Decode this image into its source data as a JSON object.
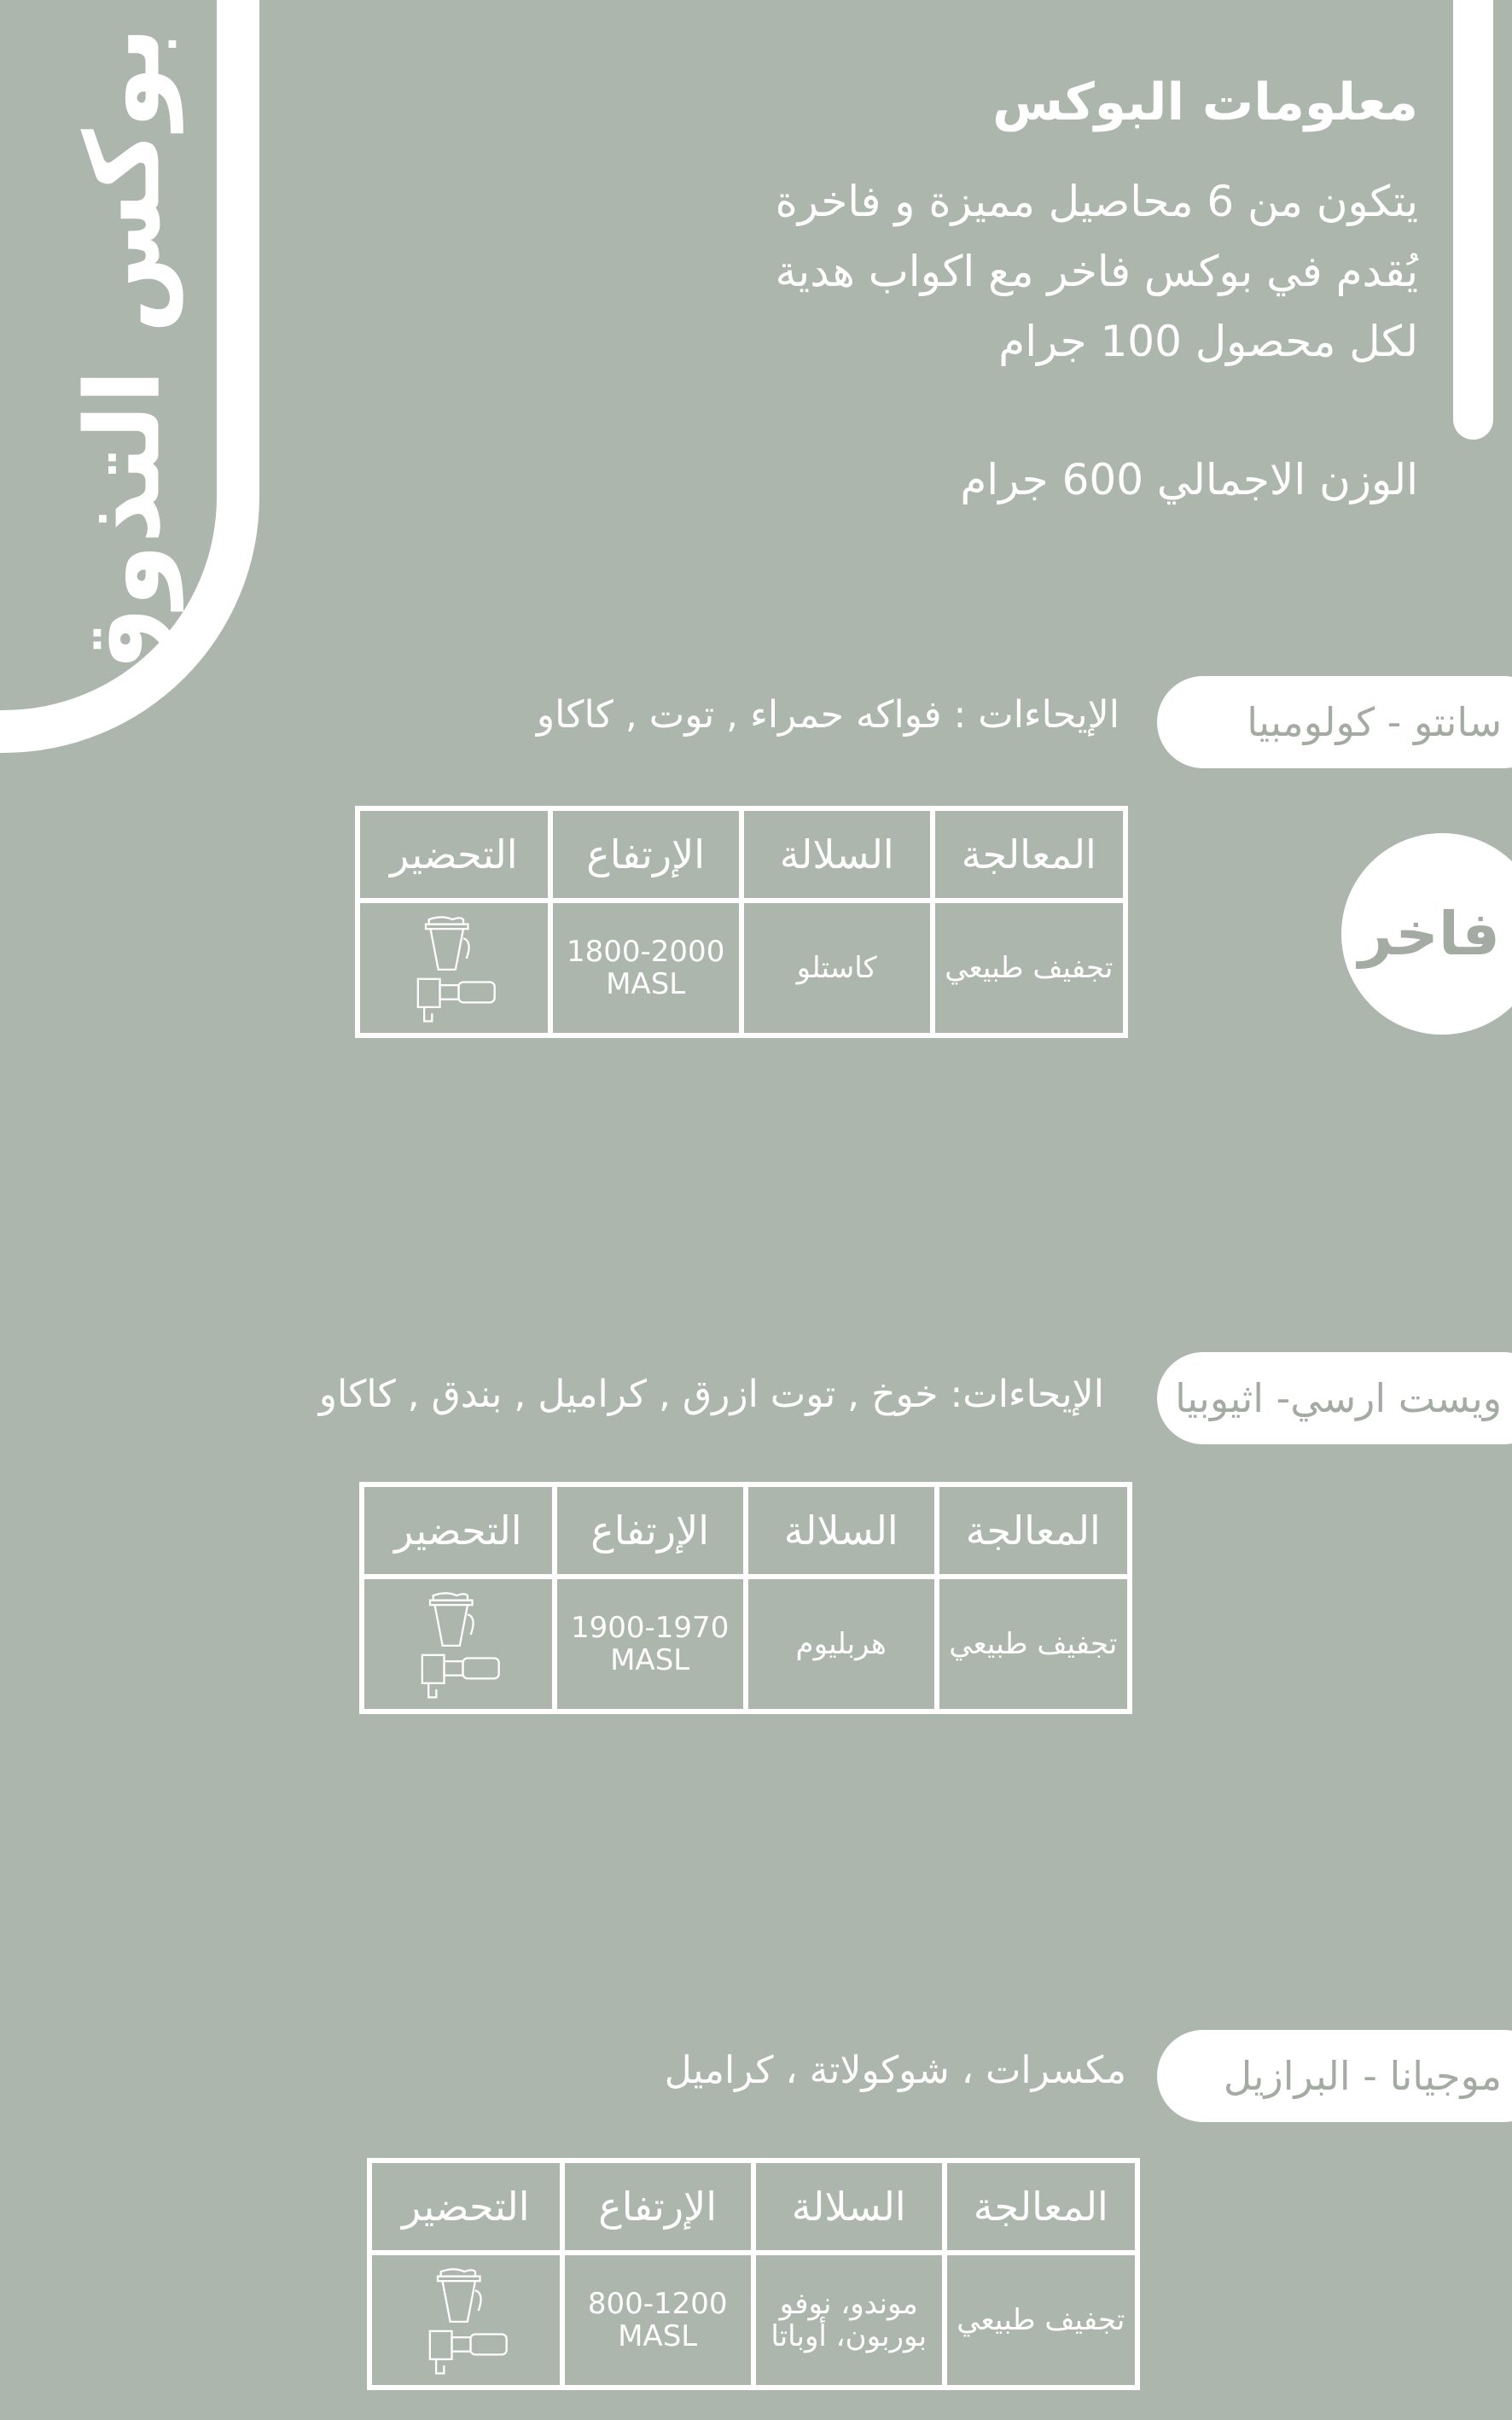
{
  "side_title": "بوكس التذوق",
  "info": {
    "title": "معلومات البوكس",
    "lines": [
      "يتكون من 6 محاصيل مميزة و فاخرة",
      "يُقدم في بوكس فاخر مع اكواب هدية",
      "لكل محصول 100 جرام"
    ],
    "total": "الوزن الاجمالي 600 جرام"
  },
  "badge": "فاخر",
  "headers": [
    "المعالجة",
    "السلالة",
    "الإرتفاع",
    "التحضير"
  ],
  "prep_icons": [
    "v60-dripper-icon",
    "espresso-portafilter-icon"
  ],
  "sections": [
    {
      "origin": "سانتو  -  كولومبيا",
      "notes": "الإيحاءات : فواكه حمراء , توت , كاكاو",
      "process": "تجفيف طبيعي",
      "variety": "كاستلو",
      "altitude": "1800-2000",
      "unit": "MASL"
    },
    {
      "origin": "ويست ارسي- اثيوبيا",
      "notes": "الإيحاءات: خوخ , توت ازرق , كراميل , بندق , كاكاو",
      "process": "تجفيف طبيعي",
      "variety": "هربليوم",
      "altitude": "1900-1970",
      "unit": "MASL"
    },
    {
      "origin": "موجيانا - البرازيل",
      "notes": "مكسرات ، شوكولاتة ، كراميل",
      "process": "تجفيف طبيعي",
      "variety": "موندو، نوفو بوربون، أوباتا",
      "altitude": "800-1200",
      "unit": "MASL"
    }
  ]
}
